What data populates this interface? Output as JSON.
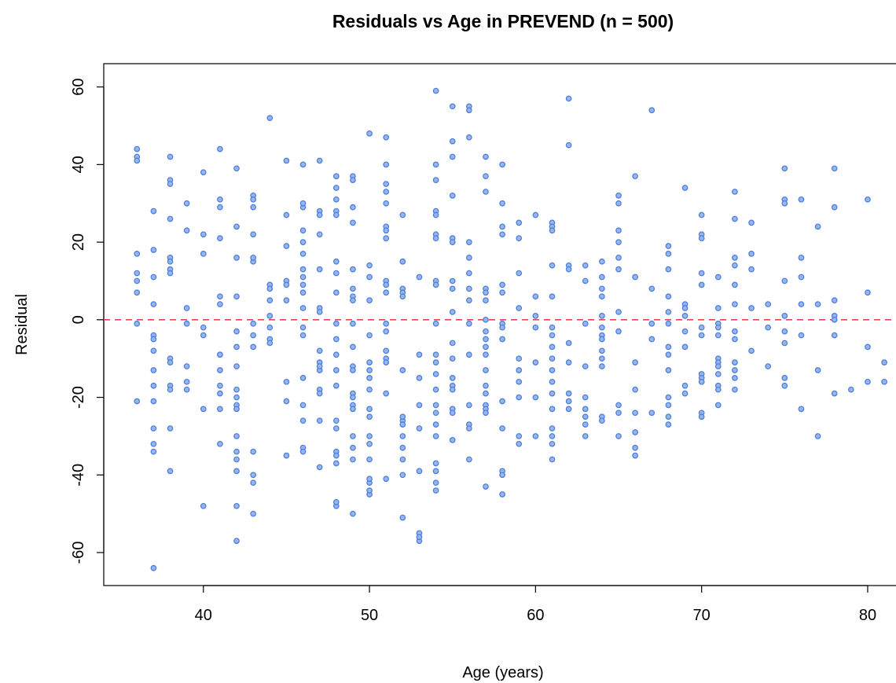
{
  "chart_data": {
    "type": "scatter",
    "title": "Residuals vs Age in PREVEND (n = 500)",
    "xlabel": "Age (years)",
    "ylabel": "Residual",
    "xlim": [
      34,
      81.8
    ],
    "ylim": [
      -68.5,
      66
    ],
    "x_ticks": [
      40,
      50,
      60,
      70,
      80
    ],
    "y_ticks": [
      -60,
      -40,
      -20,
      0,
      20,
      40,
      60
    ],
    "grid": false,
    "legend": "none",
    "reference_line": {
      "y": 0,
      "style": "dashed",
      "color": "#e8474f"
    },
    "point_color": "#4e7fdc",
    "point_fill": "#98b6ee",
    "x": [
      36,
      36,
      36,
      36,
      36,
      36,
      36,
      36,
      36,
      37,
      37,
      37,
      37,
      37,
      37,
      37,
      37,
      37,
      37,
      37,
      37,
      37,
      37,
      38,
      38,
      38,
      38,
      38,
      38,
      38,
      38,
      38,
      38,
      38,
      38,
      38,
      38,
      39,
      39,
      39,
      39,
      39,
      39,
      39,
      40,
      40,
      40,
      40,
      40,
      40,
      40,
      41,
      41,
      41,
      41,
      41,
      41,
      41,
      41,
      41,
      41,
      41,
      41,
      41,
      42,
      42,
      42,
      42,
      42,
      42,
      42,
      42,
      42,
      42,
      42,
      42,
      42,
      42,
      42,
      42,
      42,
      43,
      43,
      43,
      43,
      43,
      43,
      43,
      43,
      43,
      43,
      43,
      43,
      43,
      44,
      44,
      44,
      44,
      44,
      44,
      44,
      44,
      45,
      45,
      45,
      45,
      45,
      45,
      45,
      45,
      45,
      46,
      46,
      46,
      46,
      46,
      46,
      46,
      46,
      46,
      46,
      46,
      46,
      46,
      46,
      46,
      46,
      46,
      46,
      47,
      47,
      47,
      47,
      47,
      47,
      47,
      47,
      47,
      47,
      47,
      47,
      47,
      47,
      47,
      48,
      48,
      48,
      48,
      48,
      48,
      48,
      48,
      48,
      48,
      48,
      48,
      48,
      48,
      48,
      48,
      48,
      48,
      48,
      48,
      48,
      49,
      49,
      49,
      49,
      49,
      49,
      49,
      49,
      49,
      49,
      49,
      49,
      49,
      49,
      49,
      49,
      49,
      49,
      49,
      49,
      50,
      50,
      50,
      50,
      50,
      50,
      50,
      50,
      50,
      50,
      50,
      50,
      50,
      50,
      50,
      50,
      50,
      50,
      51,
      51,
      51,
      51,
      51,
      51,
      51,
      51,
      51,
      51,
      51,
      51,
      51,
      51,
      51,
      51,
      51,
      51,
      52,
      52,
      52,
      52,
      52,
      52,
      52,
      52,
      52,
      52,
      52,
      52,
      52,
      52,
      52,
      53,
      53,
      53,
      53,
      53,
      53,
      53,
      53,
      53,
      54,
      54,
      54,
      54,
      54,
      54,
      54,
      54,
      54,
      54,
      54,
      54,
      54,
      54,
      54,
      54,
      54,
      54,
      54,
      54,
      54,
      54,
      55,
      55,
      55,
      55,
      55,
      55,
      55,
      55,
      55,
      55,
      55,
      55,
      55,
      55,
      55,
      55,
      55,
      56,
      56,
      56,
      56,
      56,
      56,
      56,
      56,
      56,
      56,
      56,
      56,
      56,
      56,
      57,
      57,
      57,
      57,
      57,
      57,
      57,
      57,
      57,
      57,
      57,
      57,
      57,
      57,
      57,
      57,
      57,
      57,
      58,
      58,
      58,
      58,
      58,
      58,
      58,
      58,
      58,
      58,
      58,
      58,
      58,
      58,
      59,
      59,
      59,
      59,
      59,
      59,
      59,
      59,
      59,
      59,
      60,
      60,
      60,
      60,
      60,
      60,
      60,
      61,
      61,
      61,
      61,
      61,
      61,
      61,
      61,
      61,
      61,
      61,
      61,
      61,
      61,
      61,
      61,
      61,
      62,
      62,
      62,
      62,
      62,
      62,
      62,
      62,
      62,
      63,
      63,
      63,
      63,
      63,
      63,
      63,
      63,
      63,
      64,
      64,
      64,
      64,
      64,
      64,
      64,
      64,
      64,
      64,
      64,
      64,
      64,
      65,
      65,
      65,
      65,
      65,
      65,
      65,
      65,
      65,
      65,
      65,
      66,
      66,
      66,
      66,
      66,
      66,
      66,
      66,
      67,
      67,
      67,
      67,
      67,
      68,
      68,
      68,
      68,
      68,
      68,
      68,
      68,
      68,
      68,
      68,
      68,
      68,
      69,
      69,
      69,
      69,
      69,
      69,
      69,
      69,
      70,
      70,
      70,
      70,
      70,
      70,
      70,
      70,
      70,
      70,
      70,
      70,
      71,
      71,
      71,
      71,
      71,
      71,
      71,
      71,
      71,
      71,
      71,
      71,
      72,
      72,
      72,
      72,
      72,
      72,
      72,
      72,
      72,
      72,
      72,
      72,
      73,
      73,
      73,
      73,
      73,
      74,
      74,
      74,
      75,
      75,
      75,
      75,
      75,
      75,
      75,
      75,
      75,
      76,
      76,
      76,
      76,
      76,
      76,
      77,
      77,
      77,
      77,
      78,
      78,
      78,
      78,
      78,
      78,
      78,
      79,
      80,
      80,
      80,
      80,
      81,
      81
    ],
    "y": [
      44,
      42,
      41,
      17,
      12,
      10,
      7,
      -1,
      -21,
      28,
      18,
      11,
      4,
      -4,
      -5,
      -8,
      -13,
      -17,
      -21,
      -28,
      -32,
      -34,
      -64,
      42,
      36,
      35,
      26,
      16,
      15,
      13,
      12,
      -10,
      -11,
      -17,
      -18,
      -28,
      -39,
      30,
      23,
      3,
      -1,
      -12,
      -16,
      -18,
      38,
      22,
      17,
      -2,
      -4,
      -23,
      -48,
      44,
      31,
      29,
      21,
      6,
      4,
      -9,
      -13,
      -17,
      -19,
      -23,
      -32,
      -9,
      24,
      16,
      6,
      -3,
      -7,
      -12,
      -18,
      -20,
      -22,
      -30,
      -34,
      -36,
      -39,
      -48,
      -57,
      -23,
      39,
      32,
      31,
      29,
      22,
      15,
      -1,
      -4,
      -7,
      -34,
      -40,
      -42,
      -50,
      16,
      9,
      8,
      5,
      1,
      -2,
      -5,
      -6,
      52,
      27,
      19,
      10,
      9,
      5,
      -16,
      -21,
      -35,
      41,
      40,
      29,
      23,
      20,
      17,
      13,
      11,
      9,
      7,
      3,
      -2,
      -4,
      -15,
      -26,
      -33,
      -34,
      -22,
      30,
      28,
      27,
      22,
      13,
      3,
      2,
      -8,
      -11,
      -13,
      -18,
      -26,
      -38,
      -19,
      -12,
      41,
      37,
      34,
      31,
      28,
      27,
      15,
      12,
      7,
      -1,
      -5,
      -9,
      -13,
      -17,
      -28,
      -34,
      -37,
      -48,
      -26,
      -35,
      -47,
      37,
      37,
      36,
      29,
      13,
      8,
      6,
      5,
      -1,
      -7,
      -12,
      -13,
      -19,
      -20,
      -22,
      -23,
      -30,
      -33,
      -36,
      -50,
      25,
      14,
      11,
      5,
      -4,
      -11,
      -13,
      -15,
      -18,
      -23,
      -25,
      -30,
      -32,
      -36,
      -45,
      -44,
      -42,
      -41,
      48,
      40,
      35,
      33,
      30,
      24,
      23,
      21,
      10,
      9,
      7,
      -1,
      -3,
      -8,
      -10,
      -11,
      -19,
      -41,
      47,
      27,
      15,
      8,
      7,
      6,
      -13,
      -26,
      -27,
      -30,
      -33,
      -36,
      -40,
      -51,
      -25,
      15,
      11,
      -9,
      -15,
      -22,
      -28,
      -39,
      -57,
      -55,
      -56,
      59,
      40,
      36,
      28,
      27,
      22,
      21,
      10,
      9,
      -1,
      -9,
      -11,
      -14,
      -18,
      -22,
      -24,
      -27,
      -30,
      -39,
      -42,
      -44,
      -37,
      55,
      46,
      42,
      32,
      21,
      20,
      10,
      8,
      2,
      -6,
      -10,
      -15,
      -17,
      -18,
      -23,
      -24,
      -31,
      55,
      54,
      47,
      20,
      16,
      12,
      8,
      5,
      -1,
      -9,
      -22,
      -27,
      -28,
      -36,
      42,
      37,
      33,
      8,
      7,
      5,
      0,
      -3,
      -5,
      -7,
      -9,
      -13,
      -17,
      -19,
      -22,
      -23,
      -24,
      -43,
      40,
      30,
      24,
      22,
      9,
      7,
      -1,
      -2,
      -5,
      -21,
      -28,
      -39,
      -40,
      -45,
      25,
      21,
      12,
      3,
      -10,
      -13,
      -16,
      -20,
      -30,
      -32,
      27,
      6,
      1,
      -2,
      -11,
      -20,
      -30,
      25,
      24,
      23,
      14,
      6,
      -2,
      -4,
      -7,
      -10,
      -13,
      -16,
      -19,
      -23,
      -28,
      -30,
      -32,
      -36,
      57,
      45,
      14,
      13,
      -6,
      -11,
      -19,
      -21,
      -23,
      14,
      10,
      -1,
      -12,
      -20,
      -23,
      -25,
      -27,
      -30,
      15,
      11,
      8,
      6,
      1,
      -2,
      -4,
      -5,
      -8,
      -10,
      -12,
      -25,
      -26,
      32,
      30,
      23,
      20,
      16,
      13,
      2,
      -3,
      -22,
      -24,
      -30,
      37,
      11,
      -11,
      -18,
      -24,
      -29,
      -33,
      -35,
      54,
      8,
      -1,
      -5,
      -24,
      19,
      17,
      13,
      6,
      2,
      -1,
      -7,
      -9,
      -13,
      -20,
      -22,
      -25,
      -27,
      34,
      4,
      3,
      1,
      -3,
      -7,
      -17,
      -19,
      27,
      22,
      21,
      12,
      9,
      -2,
      -4,
      -14,
      -15,
      -16,
      -24,
      -25,
      11,
      3,
      -1,
      -2,
      -4,
      -10,
      -11,
      -12,
      -14,
      -17,
      -18,
      -22,
      33,
      26,
      16,
      14,
      9,
      4,
      -3,
      -5,
      -11,
      -13,
      -15,
      -18,
      25,
      17,
      13,
      3,
      -8,
      4,
      -2,
      -12,
      39,
      31,
      30,
      10,
      1,
      -3,
      -6,
      -15,
      -17,
      31,
      16,
      11,
      4,
      -4,
      -23,
      24,
      4,
      -13,
      -30,
      39,
      29,
      5,
      1,
      0,
      -4,
      -19,
      -18,
      31,
      7,
      -7,
      -16,
      -11,
      -16
    ]
  }
}
